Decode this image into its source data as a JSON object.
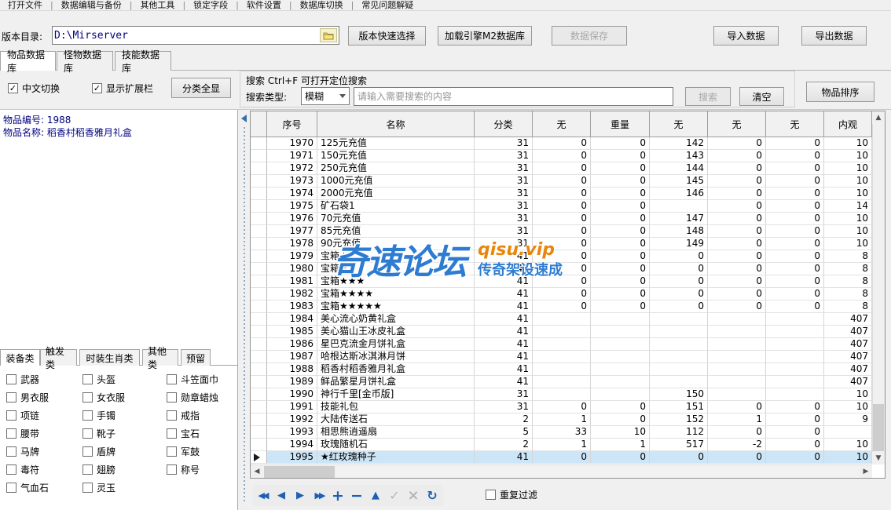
{
  "menu": {
    "items": [
      "打开文件",
      "数据编辑与备份",
      "其他工具",
      "锁定字段",
      "软件设置",
      "数据库切换",
      "常见问题解疑"
    ]
  },
  "toolbar": {
    "version_label": "版本目录:",
    "version_path": "D:\\Mirserver",
    "folder_icon": "folder-icon",
    "quick_select_label": "版本快速选择",
    "load_m2_label": "加载引擎M2数据库",
    "save_label": "数据保存",
    "import_label": "导入数据",
    "export_label": "导出数据"
  },
  "main_tabs": [
    "物品数据库",
    "怪物数据库",
    "技能数据库"
  ],
  "filter_bar": {
    "chinese_toggle": "中文切换",
    "chinese_toggle_checked": true,
    "show_extension": "显示扩展栏",
    "show_extension_checked": true,
    "category_all_label": "分类全显",
    "search_hint": "搜索  Ctrl+F 可打开定位搜索",
    "search_type_label": "搜索类型:",
    "search_type_value": "模糊",
    "search_placeholder": "请输入需要搜索的内容",
    "search_label": "搜索",
    "clear_label": "清空",
    "sort_label": "物品排序"
  },
  "item_info": {
    "id_line": "物品编号: 1988",
    "name_line": "物品名称: 稻香村稻香雅月礼盒"
  },
  "category_tabs": [
    "装备类",
    "触发类",
    "时装生肖类",
    "其他类",
    "预留"
  ],
  "category_checkboxes": [
    [
      "武器",
      "头盔",
      "斗笠面巾"
    ],
    [
      "男衣服",
      "女衣服",
      "勋章蜡烛"
    ],
    [
      "项链",
      "手镯",
      "戒指"
    ],
    [
      "腰带",
      "靴子",
      "宝石"
    ],
    [
      "马牌",
      "盾牌",
      "军鼓"
    ],
    [
      "毒符",
      "翅膀",
      "称号"
    ],
    [
      "气血石",
      "灵玉",
      ""
    ]
  ],
  "table": {
    "headers": [
      "序号",
      "名称",
      "分类",
      "无",
      "重量",
      "无",
      "无",
      "无",
      "内观"
    ],
    "rows": [
      [
        "1970",
        "125元充值",
        "31",
        "0",
        "0",
        "142",
        "0",
        "0",
        "10"
      ],
      [
        "1971",
        "150元充值",
        "31",
        "0",
        "0",
        "143",
        "0",
        "0",
        "10"
      ],
      [
        "1972",
        "250元充值",
        "31",
        "0",
        "0",
        "144",
        "0",
        "0",
        "10"
      ],
      [
        "1973",
        "1000元充值",
        "31",
        "0",
        "0",
        "145",
        "0",
        "0",
        "10"
      ],
      [
        "1974",
        "2000元充值",
        "31",
        "0",
        "0",
        "146",
        "0",
        "0",
        "10"
      ],
      [
        "1975",
        "矿石袋1",
        "31",
        "0",
        "0",
        "",
        "0",
        "0",
        "14"
      ],
      [
        "1976",
        "70元充值",
        "31",
        "0",
        "0",
        "147",
        "0",
        "0",
        "10"
      ],
      [
        "1977",
        "85元充值",
        "31",
        "0",
        "0",
        "148",
        "0",
        "0",
        "10"
      ],
      [
        "1978",
        "90元充值",
        "31",
        "0",
        "0",
        "149",
        "0",
        "0",
        "10"
      ],
      [
        "1979",
        "宝箱★",
        "41",
        "0",
        "0",
        "0",
        "0",
        "0",
        "8"
      ],
      [
        "1980",
        "宝箱★★",
        "41",
        "0",
        "0",
        "0",
        "0",
        "0",
        "8"
      ],
      [
        "1981",
        "宝箱★★★",
        "41",
        "0",
        "0",
        "0",
        "0",
        "0",
        "8"
      ],
      [
        "1982",
        "宝箱★★★★",
        "41",
        "0",
        "0",
        "0",
        "0",
        "0",
        "8"
      ],
      [
        "1983",
        "宝箱★★★★★",
        "41",
        "0",
        "0",
        "0",
        "0",
        "0",
        "8"
      ],
      [
        "1984",
        "美心流心奶黄礼盒",
        "41",
        "",
        "",
        "",
        "",
        "",
        "407"
      ],
      [
        "1985",
        "美心猫山王冰皮礼盒",
        "41",
        "",
        "",
        "",
        "",
        "",
        "407"
      ],
      [
        "1986",
        "星巴克流金月饼礼盒",
        "41",
        "",
        "",
        "",
        "",
        "",
        "407"
      ],
      [
        "1987",
        "哈根达斯冰淇淋月饼",
        "41",
        "",
        "",
        "",
        "",
        "",
        "407"
      ],
      [
        "1988",
        "稻香村稻香雅月礼盒",
        "41",
        "",
        "",
        "",
        "",
        "",
        "407"
      ],
      [
        "1989",
        "鲜品繁星月饼礼盒",
        "41",
        "",
        "",
        "",
        "",
        "",
        "407"
      ],
      [
        "1990",
        "神行千里[金币版]",
        "31",
        "",
        "",
        "150",
        "",
        "",
        "10"
      ],
      [
        "1991",
        "技能礼包",
        "31",
        "0",
        "0",
        "151",
        "0",
        "0",
        "10"
      ],
      [
        "1992",
        "大陆传送石",
        "2",
        "1",
        "0",
        "152",
        "1",
        "0",
        "9"
      ],
      [
        "1993",
        "相思熊逍遥扇",
        "5",
        "33",
        "10",
        "112",
        "0",
        "0",
        ""
      ],
      [
        "1994",
        "玫瑰随机石",
        "2",
        "1",
        "1",
        "517",
        "-2",
        "0",
        "10"
      ],
      [
        "1995",
        "★红玫瑰种子",
        "41",
        "0",
        "0",
        "0",
        "0",
        "0",
        "10"
      ]
    ],
    "selected_seq": "1995"
  },
  "watermark": {
    "title": "奇速论坛",
    "site": "qisu.vip",
    "slogan": "传奇架设速成"
  },
  "bottom_bar": {
    "nav_buttons": [
      "first",
      "prior",
      "next",
      "last",
      "insert",
      "delete",
      "edit",
      "post",
      "cancel",
      "refresh"
    ],
    "dup_filter_label": "重复过滤",
    "dup_filter_checked": false
  },
  "colors": {
    "selected_row": "#cde6f7",
    "nav_accent": "#1e5fb4",
    "info_text": "#000080",
    "watermark_blue": "#2e7cd1",
    "watermark_orange": "#e8860b"
  }
}
